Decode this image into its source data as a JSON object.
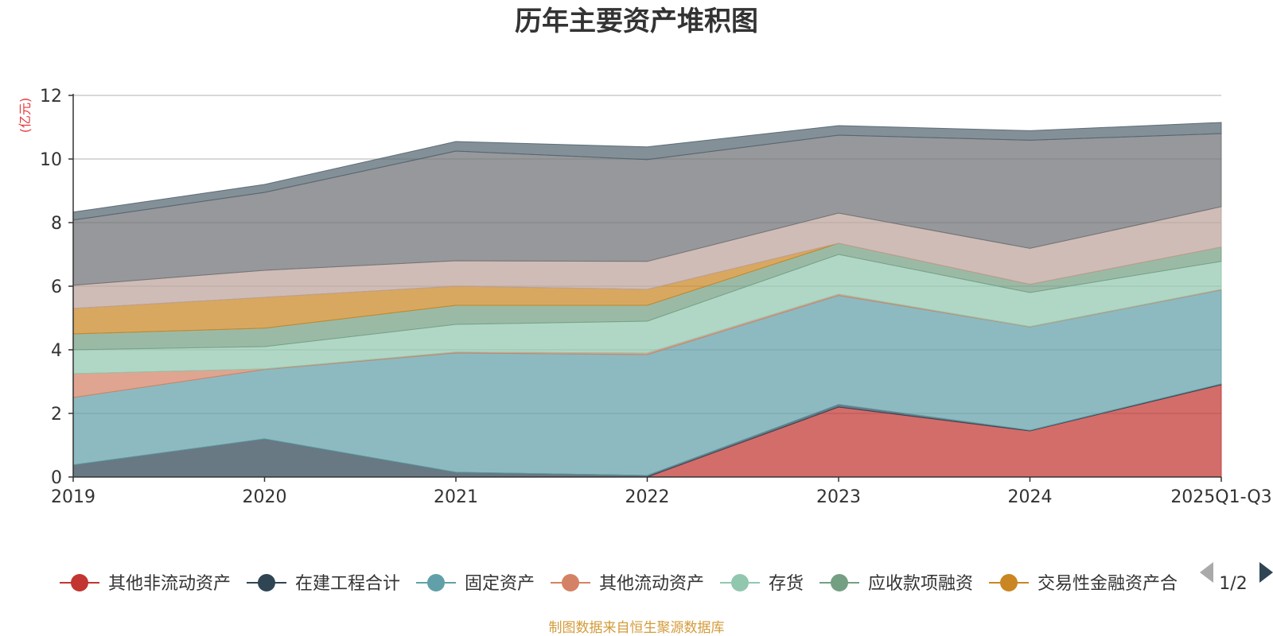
{
  "chart_data": {
    "type": "area",
    "stacked": true,
    "title": "历年主要资产堆积图",
    "unit_label": "(亿元)",
    "categories": [
      "2019",
      "2020",
      "2021",
      "2022",
      "2023",
      "2024",
      "2025Q1-Q3"
    ],
    "ylim": [
      0,
      12
    ],
    "yticks": [
      0,
      2,
      4,
      6,
      8,
      10,
      12
    ],
    "grid": true,
    "series": [
      {
        "name": "其他非流动资产",
        "color": "#c23531",
        "values": [
          0,
          0,
          0,
          0,
          2.2,
          1.45,
          2.9
        ],
        "in_legend": true
      },
      {
        "name": "在建工程合计",
        "color": "#2f4554",
        "values": [
          0.38,
          1.2,
          0.15,
          0.05,
          0.08,
          0.02,
          0.03
        ],
        "in_legend": true
      },
      {
        "name": "固定资产",
        "color": "#61a0a8",
        "values": [
          2.12,
          2.18,
          3.75,
          3.8,
          3.43,
          3.25,
          2.95
        ],
        "in_legend": true
      },
      {
        "name": "其他流动资产",
        "color": "#d48265",
        "values": [
          0.75,
          0.02,
          0.03,
          0.05,
          0.04,
          0.01,
          0.02
        ],
        "in_legend": true
      },
      {
        "name": "存货",
        "color": "#91c7ae",
        "values": [
          0.75,
          0.7,
          0.87,
          1.0,
          1.25,
          1.07,
          0.88
        ],
        "in_legend": true
      },
      {
        "name": "应收款项融资",
        "color": "#749f83",
        "values": [
          0.5,
          0.58,
          0.6,
          0.5,
          0.35,
          0.26,
          0.45
        ],
        "in_legend": true
      },
      {
        "name": "交易性金融资产合",
        "color": "#ca8622",
        "values": [
          0.8,
          0.97,
          0.6,
          0.5,
          0.0,
          0.0,
          0.0
        ],
        "in_legend": true
      },
      {
        "name": "",
        "color": "#bda29a",
        "values": [
          0.73,
          0.85,
          0.8,
          0.88,
          0.95,
          1.13,
          1.27
        ],
        "in_legend": false
      },
      {
        "name": "",
        "color": "#6e7074",
        "values": [
          2.05,
          2.45,
          3.45,
          3.2,
          2.45,
          3.4,
          2.3
        ],
        "in_legend": false
      },
      {
        "name": "",
        "color": "#546570",
        "values": [
          0.25,
          0.25,
          0.3,
          0.4,
          0.3,
          0.3,
          0.35
        ],
        "in_legend": false
      }
    ]
  },
  "legend": {
    "page": "1/2"
  },
  "source": "制图数据来自恒生聚源数据库",
  "icons": {
    "prev": "triangle-left-icon",
    "next": "triangle-right-icon"
  }
}
